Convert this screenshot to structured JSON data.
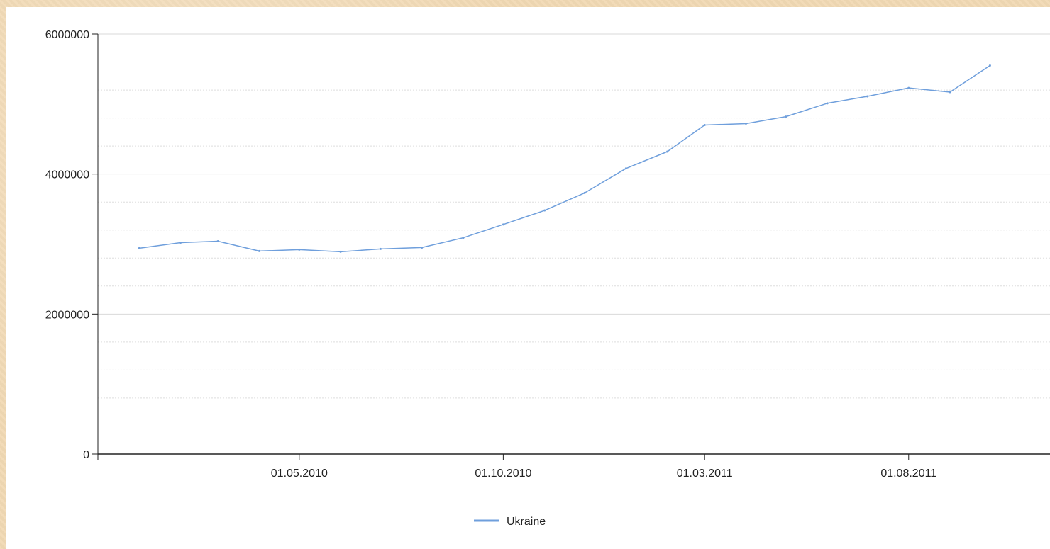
{
  "colors": {
    "series": "#6f9fdc",
    "axis": "#222222",
    "grid_major": "#d9d9d9",
    "grid_minor": "#dddddd"
  },
  "chart_data": {
    "type": "line",
    "title": "",
    "xlabel": "",
    "ylabel": "",
    "ylim": [
      0,
      6000000
    ],
    "y_ticks": [
      0,
      2000000,
      4000000,
      6000000
    ],
    "y_tick_labels": [
      "0",
      "2000000",
      "4000000",
      "6000000"
    ],
    "x_tick_labels": [
      "01.05.2010",
      "01.10.2010",
      "01.03.2011",
      "01.08.2011"
    ],
    "x_ticks": [
      "2010-05-01",
      "2010-10-01",
      "2011-03-01",
      "2011-08-01"
    ],
    "xlim": [
      "2009-12-01",
      "2011-11-15"
    ],
    "grid": "horizontal",
    "legend": "bottom-center",
    "series": [
      {
        "name": "Ukraine",
        "x": [
          "2010-01-01",
          "2010-02-01",
          "2010-03-01",
          "2010-04-01",
          "2010-05-01",
          "2010-06-01",
          "2010-07-01",
          "2010-08-01",
          "2010-09-01",
          "2010-10-01",
          "2010-11-01",
          "2010-12-01",
          "2011-01-01",
          "2011-02-01",
          "2011-03-01",
          "2011-04-01",
          "2011-05-01",
          "2011-06-01",
          "2011-07-01",
          "2011-08-01",
          "2011-09-01",
          "2011-10-01"
        ],
        "values": [
          2940000,
          3020000,
          3040000,
          2900000,
          2920000,
          2890000,
          2930000,
          2950000,
          3090000,
          3280000,
          3480000,
          3730000,
          4080000,
          4320000,
          4700000,
          4720000,
          4820000,
          5010000,
          5110000,
          5230000,
          5170000,
          5550000
        ]
      }
    ]
  }
}
